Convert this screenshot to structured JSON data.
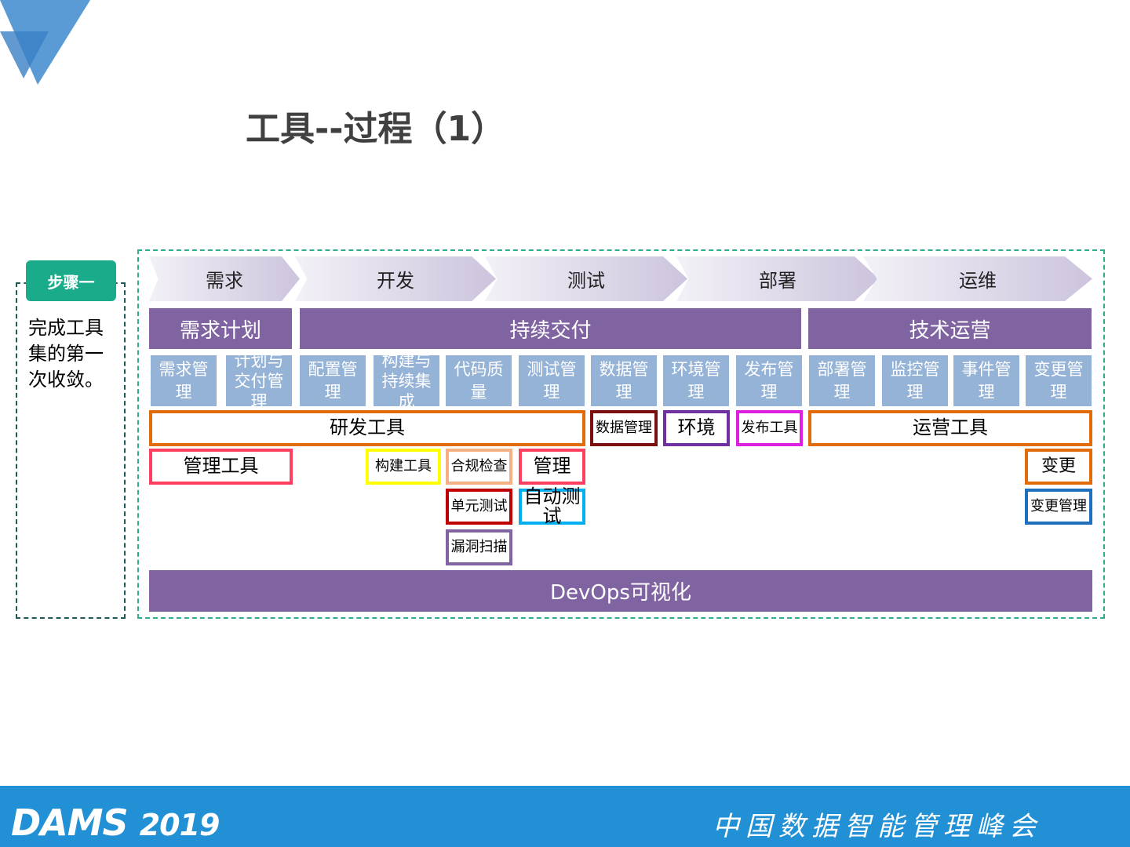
{
  "title": "工具--过程（1）",
  "step_badge": "步骤一",
  "step_desc": "完成工具集的第一次收敛。",
  "phases": [
    "需求",
    "开发",
    "测试",
    "部署",
    "运维"
  ],
  "headers": [
    "需求计划",
    "持续交付",
    "技术运营"
  ],
  "subitems": [
    "需求管理",
    "计划与交付管理",
    "配置管理",
    "构建与持续集成",
    "代码质量",
    "测试管理",
    "数据管理",
    "环境管理",
    "发布管理",
    "部署管理",
    "监控管理",
    "事件管理",
    "变更管理"
  ],
  "tools": [
    {
      "label": "研发工具",
      "color": "#e36c0a"
    },
    {
      "label": "数据管理",
      "color": "#7b0f0f"
    },
    {
      "label": "环境",
      "color": "#7030a0"
    },
    {
      "label": "发布工具",
      "color": "#e020e0"
    },
    {
      "label": "运营工具",
      "color": "#e36c0a"
    },
    {
      "label": "管理工具",
      "color": "#ff4060"
    },
    {
      "label": "构建工具",
      "color": "#ffff00"
    },
    {
      "label": "合规检查",
      "color": "#f4b183"
    },
    {
      "label": "管理",
      "color": "#ff4060"
    },
    {
      "label": "变更",
      "color": "#e36c0a"
    },
    {
      "label": "单元测试",
      "color": "#c00000"
    },
    {
      "label": "自动测试",
      "color": "#00b0f0"
    },
    {
      "label": "变更管理",
      "color": "#1f6fbf"
    },
    {
      "label": "漏洞扫描",
      "color": "#8064a2"
    }
  ],
  "devops_bar": "DevOps可视化",
  "footer": {
    "logo": "DAMS",
    "year": "2019",
    "summit": "中国数据智能管理峰会"
  },
  "colors": {
    "purple": "#8064a2",
    "light_blue": "#95b3d7",
    "teal": "#1aab8a",
    "footer_blue": "#2190d4"
  }
}
